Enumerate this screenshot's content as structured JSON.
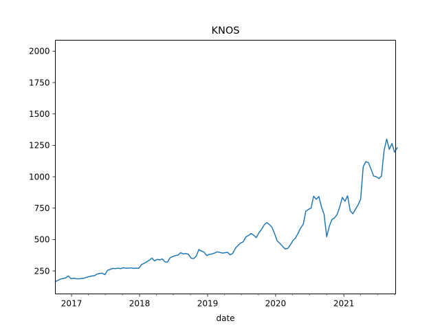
{
  "chart_data": {
    "type": "line",
    "title": "KNOS",
    "xlabel": "date",
    "ylabel": "",
    "x_type": "date",
    "xlim": [
      "2016-10-06",
      "2021-10-06"
    ],
    "ylim": [
      67,
      2087
    ],
    "x_ticks": [
      {
        "date": "2017-01-01",
        "label": "2017"
      },
      {
        "date": "2018-01-01",
        "label": "2018"
      },
      {
        "date": "2019-01-01",
        "label": "2019"
      },
      {
        "date": "2020-01-01",
        "label": "2020"
      },
      {
        "date": "2021-01-01",
        "label": "2021"
      }
    ],
    "y_ticks": [
      250,
      500,
      750,
      1000,
      1250,
      1500,
      1750,
      2000
    ],
    "grid": false,
    "legend": "none",
    "series": [
      {
        "color": "#1f77b4",
        "points": [
          [
            "2016-10-06",
            165
          ],
          [
            "2016-10-20",
            175
          ],
          [
            "2016-11-03",
            185
          ],
          [
            "2016-11-17",
            190
          ],
          [
            "2016-12-01",
            195
          ],
          [
            "2016-12-15",
            210
          ],
          [
            "2016-12-29",
            188
          ],
          [
            "2017-01-12",
            192
          ],
          [
            "2017-01-26",
            188
          ],
          [
            "2017-02-09",
            187
          ],
          [
            "2017-02-23",
            190
          ],
          [
            "2017-03-09",
            192
          ],
          [
            "2017-03-23",
            200
          ],
          [
            "2017-04-06",
            205
          ],
          [
            "2017-04-20",
            210
          ],
          [
            "2017-05-04",
            212
          ],
          [
            "2017-05-18",
            225
          ],
          [
            "2017-06-01",
            230
          ],
          [
            "2017-06-15",
            232
          ],
          [
            "2017-06-29",
            220
          ],
          [
            "2017-07-13",
            255
          ],
          [
            "2017-07-27",
            262
          ],
          [
            "2017-08-10",
            270
          ],
          [
            "2017-08-24",
            268
          ],
          [
            "2017-09-07",
            272
          ],
          [
            "2017-09-21",
            268
          ],
          [
            "2017-10-05",
            275
          ],
          [
            "2017-10-19",
            272
          ],
          [
            "2017-11-02",
            272
          ],
          [
            "2017-11-16",
            274
          ],
          [
            "2017-11-30",
            270
          ],
          [
            "2017-12-14",
            272
          ],
          [
            "2017-12-28",
            271
          ],
          [
            "2018-01-11",
            300
          ],
          [
            "2018-01-25",
            310
          ],
          [
            "2018-02-08",
            322
          ],
          [
            "2018-02-22",
            335
          ],
          [
            "2018-03-08",
            352
          ],
          [
            "2018-03-22",
            330
          ],
          [
            "2018-04-05",
            342
          ],
          [
            "2018-04-19",
            338
          ],
          [
            "2018-05-03",
            345
          ],
          [
            "2018-05-17",
            322
          ],
          [
            "2018-05-31",
            320
          ],
          [
            "2018-06-14",
            355
          ],
          [
            "2018-06-28",
            365
          ],
          [
            "2018-07-12",
            372
          ],
          [
            "2018-07-26",
            376
          ],
          [
            "2018-08-09",
            395
          ],
          [
            "2018-08-23",
            386
          ],
          [
            "2018-09-06",
            388
          ],
          [
            "2018-09-20",
            383
          ],
          [
            "2018-10-04",
            352
          ],
          [
            "2018-10-18",
            348
          ],
          [
            "2018-11-01",
            368
          ],
          [
            "2018-11-15",
            420
          ],
          [
            "2018-11-29",
            408
          ],
          [
            "2018-12-13",
            400
          ],
          [
            "2018-12-27",
            372
          ],
          [
            "2019-01-10",
            382
          ],
          [
            "2019-01-24",
            385
          ],
          [
            "2019-02-07",
            392
          ],
          [
            "2019-02-21",
            402
          ],
          [
            "2019-03-07",
            398
          ],
          [
            "2019-03-21",
            392
          ],
          [
            "2019-04-04",
            395
          ],
          [
            "2019-04-18",
            398
          ],
          [
            "2019-05-02",
            378
          ],
          [
            "2019-05-16",
            390
          ],
          [
            "2019-05-30",
            430
          ],
          [
            "2019-06-13",
            452
          ],
          [
            "2019-06-27",
            472
          ],
          [
            "2019-07-11",
            482
          ],
          [
            "2019-07-25",
            520
          ],
          [
            "2019-08-08",
            532
          ],
          [
            "2019-08-22",
            548
          ],
          [
            "2019-09-05",
            535
          ],
          [
            "2019-09-19",
            515
          ],
          [
            "2019-10-03",
            552
          ],
          [
            "2019-10-17",
            580
          ],
          [
            "2019-10-31",
            615
          ],
          [
            "2019-11-14",
            635
          ],
          [
            "2019-11-28",
            620
          ],
          [
            "2019-12-12",
            598
          ],
          [
            "2019-12-26",
            548
          ],
          [
            "2020-01-09",
            490
          ],
          [
            "2020-01-23",
            470
          ],
          [
            "2020-02-06",
            448
          ],
          [
            "2020-02-20",
            425
          ],
          [
            "2020-03-05",
            428
          ],
          [
            "2020-03-19",
            455
          ],
          [
            "2020-04-02",
            490
          ],
          [
            "2020-04-16",
            512
          ],
          [
            "2020-04-30",
            548
          ],
          [
            "2020-05-14",
            592
          ],
          [
            "2020-05-28",
            620
          ],
          [
            "2020-06-11",
            725
          ],
          [
            "2020-06-25",
            740
          ],
          [
            "2020-07-09",
            750
          ],
          [
            "2020-07-23",
            845
          ],
          [
            "2020-08-06",
            820
          ],
          [
            "2020-08-20",
            842
          ],
          [
            "2020-09-03",
            760
          ],
          [
            "2020-09-17",
            700
          ],
          [
            "2020-10-01",
            522
          ],
          [
            "2020-10-15",
            605
          ],
          [
            "2020-10-29",
            660
          ],
          [
            "2020-11-12",
            672
          ],
          [
            "2020-11-26",
            700
          ],
          [
            "2020-12-10",
            760
          ],
          [
            "2020-12-24",
            835
          ],
          [
            "2021-01-07",
            805
          ],
          [
            "2021-01-21",
            848
          ],
          [
            "2021-02-04",
            730
          ],
          [
            "2021-02-18",
            705
          ],
          [
            "2021-03-04",
            740
          ],
          [
            "2021-03-18",
            775
          ],
          [
            "2021-04-01",
            820
          ],
          [
            "2021-04-15",
            1080
          ],
          [
            "2021-04-29",
            1120
          ],
          [
            "2021-05-13",
            1112
          ],
          [
            "2021-05-27",
            1060
          ],
          [
            "2021-06-10",
            1005
          ],
          [
            "2021-06-24",
            1000
          ],
          [
            "2021-07-08",
            985
          ],
          [
            "2021-07-22",
            1005
          ],
          [
            "2021-08-05",
            1210
          ],
          [
            "2021-08-19",
            1300
          ],
          [
            "2021-09-02",
            1218
          ],
          [
            "2021-09-16",
            1265
          ],
          [
            "2021-09-30",
            1195
          ],
          [
            "2021-10-14",
            1230
          ]
        ]
      }
    ]
  }
}
